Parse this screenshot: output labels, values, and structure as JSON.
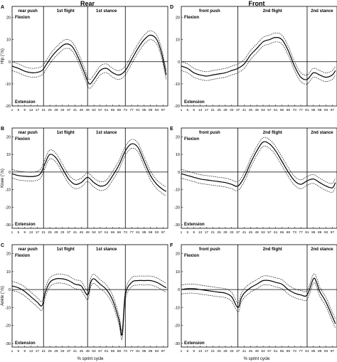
{
  "columns": [
    "Rear",
    "Front"
  ],
  "xlabel": "% sprint cycle",
  "x_ticks": [
    1,
    5,
    9,
    13,
    17,
    21,
    25,
    29,
    33,
    37,
    41,
    45,
    49,
    53,
    57,
    61,
    65,
    69,
    73,
    77,
    81,
    85,
    89,
    93,
    97
  ],
  "chart_data": [
    {
      "type": "line",
      "letter": "A",
      "ylabel": "Hip (°/s)",
      "ylim": [
        -20,
        25
      ],
      "yticks": [
        -20,
        -10,
        0,
        10,
        20
      ],
      "flexion_label": "Flexion",
      "extension_label": "Extension",
      "phases": [
        "rear push",
        "1st flight",
        "1st stance"
      ],
      "phase_boundaries": [
        21,
        49,
        73
      ],
      "mean": [
        [
          1,
          -2
        ],
        [
          5,
          -3
        ],
        [
          10,
          -4.5
        ],
        [
          15,
          -5
        ],
        [
          20,
          -4
        ],
        [
          23,
          -1
        ],
        [
          27,
          3
        ],
        [
          31,
          6
        ],
        [
          35,
          8
        ],
        [
          39,
          7
        ],
        [
          43,
          2
        ],
        [
          47,
          -5
        ],
        [
          50,
          -10
        ],
        [
          53,
          -8
        ],
        [
          57,
          -4
        ],
        [
          61,
          -3
        ],
        [
          65,
          -5
        ],
        [
          69,
          -6
        ],
        [
          73,
          -4
        ],
        [
          77,
          1
        ],
        [
          81,
          6
        ],
        [
          85,
          10
        ],
        [
          89,
          12
        ],
        [
          93,
          10
        ],
        [
          96,
          4
        ],
        [
          99,
          -6
        ]
      ],
      "band_offset": 2
    },
    {
      "type": "line",
      "letter": "D",
      "ylabel": "",
      "ylim": [
        -20,
        25
      ],
      "yticks": [
        -20,
        -10,
        0,
        10,
        20
      ],
      "flexion_label": "Flexion",
      "extension_label": "Extension",
      "phases": [
        "front push",
        "2nd flight",
        "2nd stance"
      ],
      "phase_boundaries": [
        37,
        81
      ],
      "mean": [
        [
          1,
          -2
        ],
        [
          5,
          -3
        ],
        [
          9,
          -5
        ],
        [
          13,
          -6
        ],
        [
          17,
          -6.5
        ],
        [
          21,
          -6
        ],
        [
          25,
          -5.5
        ],
        [
          29,
          -5
        ],
        [
          33,
          -4
        ],
        [
          37,
          -3
        ],
        [
          41,
          -1
        ],
        [
          45,
          3
        ],
        [
          49,
          6
        ],
        [
          53,
          9
        ],
        [
          57,
          10
        ],
        [
          61,
          11
        ],
        [
          65,
          10
        ],
        [
          69,
          5
        ],
        [
          73,
          -2
        ],
        [
          77,
          -7
        ],
        [
          81,
          -8
        ],
        [
          85,
          -5
        ],
        [
          89,
          -6
        ],
        [
          93,
          -7
        ],
        [
          97,
          -6
        ],
        [
          99,
          -4
        ]
      ],
      "band_offset": 2
    },
    {
      "type": "line",
      "letter": "B",
      "ylabel": "Knee (°/s)",
      "ylim": [
        -32,
        25
      ],
      "yticks": [
        -30,
        -20,
        -10,
        0,
        10,
        20
      ],
      "flexion_label": "Flexion",
      "extension_label": "Extension",
      "phases": [
        "rear push",
        "1st flight",
        "1st stance"
      ],
      "phase_boundaries": [
        21,
        49,
        73
      ],
      "mean": [
        [
          1,
          -1
        ],
        [
          5,
          -2
        ],
        [
          10,
          -2.5
        ],
        [
          15,
          -2.5
        ],
        [
          19,
          -1
        ],
        [
          22,
          5
        ],
        [
          25,
          10
        ],
        [
          29,
          8
        ],
        [
          33,
          2
        ],
        [
          37,
          -4
        ],
        [
          41,
          -7
        ],
        [
          45,
          -6
        ],
        [
          49,
          -3
        ],
        [
          53,
          -6
        ],
        [
          57,
          -8
        ],
        [
          61,
          -7
        ],
        [
          65,
          -2
        ],
        [
          69,
          4
        ],
        [
          73,
          12
        ],
        [
          77,
          16
        ],
        [
          81,
          14
        ],
        [
          85,
          6
        ],
        [
          89,
          -2
        ],
        [
          93,
          -7
        ],
        [
          97,
          -10
        ],
        [
          99,
          -11
        ]
      ],
      "band_offset": 2.5
    },
    {
      "type": "line",
      "letter": "E",
      "ylabel": "",
      "ylim": [
        -32,
        25
      ],
      "yticks": [
        -30,
        -20,
        -10,
        0,
        10,
        20
      ],
      "flexion_label": "Flexion",
      "extension_label": "Extension",
      "phases": [
        "front push",
        "2nd flight",
        "2nd stance"
      ],
      "phase_boundaries": [
        37,
        81
      ],
      "mean": [
        [
          1,
          -1
        ],
        [
          5,
          -2
        ],
        [
          9,
          -3
        ],
        [
          13,
          -4
        ],
        [
          17,
          -4.5
        ],
        [
          21,
          -5
        ],
        [
          25,
          -5.5
        ],
        [
          29,
          -6
        ],
        [
          33,
          -7
        ],
        [
          37,
          -8
        ],
        [
          41,
          -3
        ],
        [
          45,
          5
        ],
        [
          49,
          12
        ],
        [
          53,
          17
        ],
        [
          57,
          16
        ],
        [
          61,
          12
        ],
        [
          65,
          6
        ],
        [
          69,
          0
        ],
        [
          73,
          -5
        ],
        [
          77,
          -7
        ],
        [
          81,
          -5
        ],
        [
          85,
          -4
        ],
        [
          89,
          -6
        ],
        [
          93,
          -8
        ],
        [
          97,
          -9
        ],
        [
          99,
          -6
        ]
      ],
      "band_offset": 2.5
    },
    {
      "type": "line",
      "letter": "C",
      "ylabel": "Ankle (°/s)",
      "ylim": [
        -32,
        25
      ],
      "yticks": [
        -30,
        -20,
        -10,
        0,
        10,
        20
      ],
      "flexion_label": "Flexion",
      "extension_label": "Extension",
      "phases": [
        "rear push",
        "1st flight",
        "1st stance"
      ],
      "phase_boundaries": [
        21,
        49,
        73
      ],
      "mean": [
        [
          1,
          2
        ],
        [
          5,
          1
        ],
        [
          9,
          -1
        ],
        [
          13,
          -4
        ],
        [
          17,
          -7
        ],
        [
          20,
          -9
        ],
        [
          22,
          -2
        ],
        [
          25,
          4
        ],
        [
          29,
          6
        ],
        [
          33,
          6
        ],
        [
          37,
          5
        ],
        [
          41,
          3
        ],
        [
          45,
          2
        ],
        [
          49,
          -3
        ],
        [
          51,
          4
        ],
        [
          53,
          6
        ],
        [
          57,
          3
        ],
        [
          61,
          0
        ],
        [
          65,
          -6
        ],
        [
          69,
          -17
        ],
        [
          71,
          -25
        ],
        [
          73,
          -3
        ],
        [
          77,
          4
        ],
        [
          81,
          5
        ],
        [
          85,
          5
        ],
        [
          89,
          5
        ],
        [
          93,
          4
        ],
        [
          97,
          2
        ],
        [
          99,
          1
        ]
      ],
      "band_offset": 2.5
    },
    {
      "type": "line",
      "letter": "F",
      "ylabel": "",
      "ylim": [
        -32,
        25
      ],
      "yticks": [
        -30,
        -20,
        -10,
        0,
        10,
        20
      ],
      "flexion_label": "Flexion",
      "extension_label": "Extension",
      "phases": [
        "front push",
        "2nd flight",
        "2nd stance"
      ],
      "phase_boundaries": [
        37,
        81
      ],
      "mean": [
        [
          1,
          0
        ],
        [
          5,
          0.5
        ],
        [
          9,
          0.5
        ],
        [
          13,
          0
        ],
        [
          17,
          -0.5
        ],
        [
          21,
          -1
        ],
        [
          25,
          -1.5
        ],
        [
          29,
          -2
        ],
        [
          33,
          -4
        ],
        [
          37,
          -10
        ],
        [
          39,
          -5
        ],
        [
          41,
          -2
        ],
        [
          45,
          1
        ],
        [
          49,
          3
        ],
        [
          53,
          5
        ],
        [
          57,
          5
        ],
        [
          61,
          4
        ],
        [
          65,
          3
        ],
        [
          69,
          0
        ],
        [
          73,
          -2
        ],
        [
          77,
          -3
        ],
        [
          81,
          -3
        ],
        [
          85,
          6
        ],
        [
          87,
          4
        ],
        [
          89,
          -1
        ],
        [
          93,
          -7
        ],
        [
          97,
          -15
        ],
        [
          99,
          -19
        ]
      ],
      "band_offset": 2.5
    }
  ]
}
